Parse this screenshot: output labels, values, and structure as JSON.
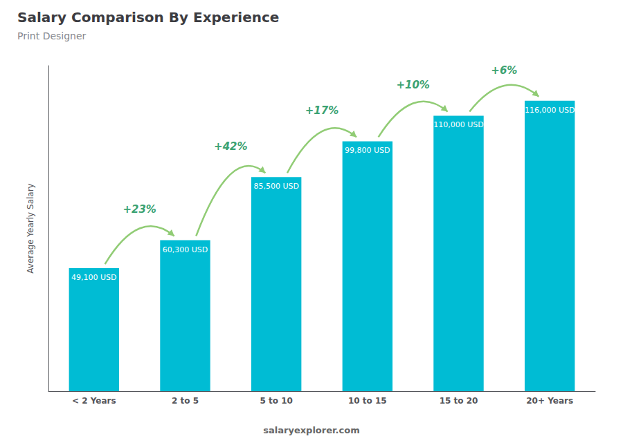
{
  "chart_data": {
    "type": "bar",
    "title": "Salary Comparison By Experience",
    "subtitle": "Print Designer",
    "ylabel": "Average Yearly Salary",
    "categories": [
      "< 2 Years",
      "2 to 5",
      "5 to 10",
      "10 to 15",
      "15 to 20",
      "20+ Years"
    ],
    "values": [
      49100,
      60300,
      85500,
      99800,
      110000,
      116000
    ],
    "value_labels": [
      "49,100 USD",
      "60,300 USD",
      "85,500 USD",
      "99,800 USD",
      "110,000 USD",
      "116,000 USD"
    ],
    "data_labels": true,
    "annotations": [
      "+23%",
      "+42%",
      "+17%",
      "+10%",
      "+6%"
    ],
    "note": "salaryexplorer.com",
    "color": "#00bcd4",
    "ylim": [
      0,
      130000
    ],
    "grid": false,
    "tick_labels": "x"
  }
}
